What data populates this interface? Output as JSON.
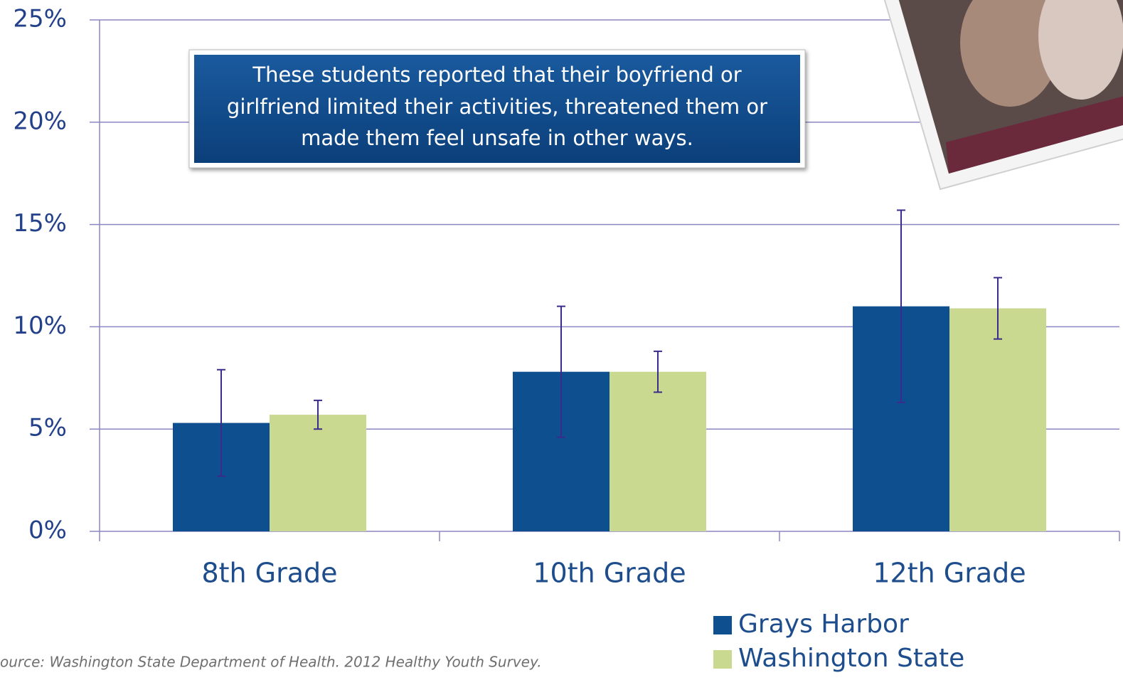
{
  "chart_data": {
    "type": "bar",
    "annotation": [
      "These students reported that their boyfriend or",
      "girlfriend limited their activities, threatened them or",
      "made them feel unsafe in other ways."
    ],
    "source": "ource: Washington State Department of Health. 2012 Healthy Youth Survey.",
    "categories": [
      "8th Grade",
      "10th Grade",
      "12th Grade"
    ],
    "series": [
      {
        "name": "Grays Harbor",
        "color": "#0e4f8f",
        "values": [
          5.3,
          7.8,
          11.0
        ],
        "error_bars": [
          [
            2.7,
            7.9
          ],
          [
            4.6,
            11.0
          ],
          [
            6.3,
            15.7
          ]
        ]
      },
      {
        "name": "Washington State",
        "color": "#c9da90",
        "values": [
          5.7,
          7.8,
          10.9
        ],
        "error_bars": [
          [
            5.0,
            6.4
          ],
          [
            6.8,
            8.8
          ],
          [
            9.4,
            12.4
          ]
        ]
      }
    ],
    "error_color": "#3a2b8c",
    "ylim": [
      0,
      25
    ],
    "yticks": [
      {
        "value": 0,
        "label": "0%"
      },
      {
        "value": 5,
        "label": "5%"
      },
      {
        "value": 10,
        "label": "10%"
      },
      {
        "value": 15,
        "label": "15%"
      },
      {
        "value": 20,
        "label": "20%"
      },
      {
        "value": 25,
        "label": "25%"
      }
    ],
    "grid": true
  }
}
